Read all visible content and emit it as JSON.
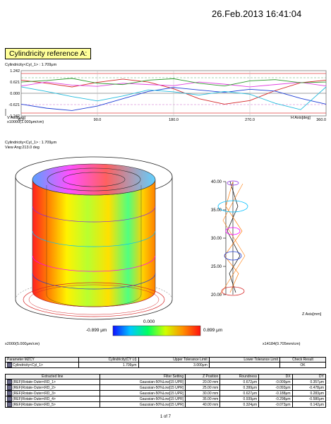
{
  "header": {
    "datetime": "26.Feb.2013 16:41:04"
  },
  "report": {
    "title": "Cylindricity reference A:"
  },
  "unroll_plot": {
    "label": "Cylindricity<Cyl_1> : 1.709μm",
    "y_ticks": [
      "1.242",
      "0.621",
      "0.000",
      "-0.621",
      "-1.242"
    ],
    "x_ticks": [
      "0.0",
      "90.0",
      "180.0",
      "270.0",
      "360.0"
    ],
    "v_axis_label": "V Axis[μm]",
    "v_scale": "x10000(1.000μm/cm)",
    "h_axis_label": "H Axis[deg]"
  },
  "chart_data": {
    "type": "line",
    "x": [
      0,
      30,
      60,
      90,
      120,
      150,
      180,
      210,
      240,
      270,
      300,
      330,
      360
    ],
    "series": [
      {
        "color": "#d62728",
        "values": [
          0.72,
          0.55,
          0.35,
          0.6,
          0.78,
          0.62,
          0.25,
          -0.3,
          -0.6,
          -0.4,
          0.15,
          0.58,
          0.72
        ]
      },
      {
        "color": "#1f3fd6",
        "values": [
          -0.6,
          -0.82,
          -0.95,
          -0.7,
          -0.3,
          0.1,
          0.32,
          0.18,
          0.05,
          0.22,
          0.12,
          -0.28,
          -0.6
        ]
      },
      {
        "color": "#22bbdd",
        "values": [
          0.35,
          0.1,
          -0.18,
          -0.42,
          -0.15,
          0.18,
          0.08,
          -0.1,
          0.1,
          -0.05,
          -0.55,
          -0.9,
          0.35
        ]
      },
      {
        "color": "#e040e0",
        "values": [
          0.4,
          0.62,
          0.45,
          0.38,
          0.55,
          0.48,
          0.42,
          0.62,
          0.5,
          0.35,
          0.48,
          0.6,
          0.4
        ]
      },
      {
        "color": "#2c9a2c",
        "values": [
          0.62,
          0.7,
          0.82,
          0.55,
          0.48,
          0.72,
          0.8,
          0.55,
          0.4,
          0.68,
          0.75,
          0.58,
          0.62
        ]
      }
    ]
  },
  "cyl_view": {
    "label": "Cylindricity<Cyl_1> : 1.709μm",
    "view_ang": "View Ang:213.0 deg",
    "scale_min": "-0.899 μm",
    "scale_mid": "0.000",
    "scale_max": "0.899 μm",
    "scale_left": "x2000(5.000μm/cm)",
    "scale_right": "x14184(0.705mm/cm)",
    "z_axis_label": "Z Axis[mm]",
    "z_ticks": [
      "40.00",
      "35.00",
      "30.00",
      "25.00",
      "20.00"
    ]
  },
  "param_table": {
    "headers": [
      "Parameter MZCY",
      "Cylindricity(CY Lt)",
      "Upper Tolerance Limit",
      "Lower Tolerance Limit",
      "Check Result"
    ],
    "row": [
      "Cylindricity<Cyl_1>",
      "1.709μm",
      "3.000μm",
      "",
      "OK"
    ]
  },
  "line_table": {
    "headers": [
      "Extracted line",
      "Filter Setting",
      "Z Position",
      "Roundness",
      "DX",
      "DY"
    ],
    "rows": [
      [
        "(REF)Rotate-Outer<RD_1>",
        "Gaussian-50%Low[15 UPR]",
        "20.00 mm",
        "0.672μm",
        "-0.009μm",
        "0.357μm"
      ],
      [
        "(REF)Rotate-Outer<RD_2>",
        "Gaussian-50%Low[15 UPR]",
        "25.00 mm",
        "0.399μm",
        "-0.093μm",
        "-0.478μm"
      ],
      [
        "(REF)Rotate-Outer<RD_3>",
        "Gaussian-50%Low[15 UPR]",
        "30.00 mm",
        "0.627μm",
        "-0.188μm",
        "0.283μm"
      ],
      [
        "(REF)Rotate-Outer<RD_4>",
        "Gaussian-50%Low[15 UPR]",
        "35.00 mm",
        "0.939μm",
        "-0.298μm",
        "-0.580μm"
      ],
      [
        "(REF)Rotate-Outer<RD_5>",
        "Gaussian-50%Low[15 UPR]",
        "40.00 mm",
        "0.324μm",
        "-0.073μm",
        "0.142μm"
      ]
    ]
  },
  "footer": {
    "page": "1 of 7"
  }
}
